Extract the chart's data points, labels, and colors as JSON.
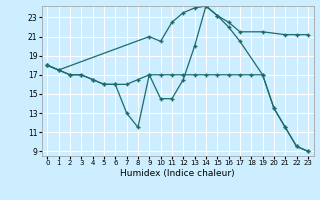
{
  "xlabel": "Humidex (Indice chaleur)",
  "background_color": "#cceeff",
  "grid_color": "#ffffff",
  "line_color": "#1a6b6b",
  "xlim": [
    -0.5,
    23.5
  ],
  "ylim": [
    8.5,
    24.2
  ],
  "yticks": [
    9,
    11,
    13,
    15,
    17,
    19,
    21,
    23
  ],
  "xticks": [
    0,
    1,
    2,
    3,
    4,
    5,
    6,
    7,
    8,
    9,
    10,
    11,
    12,
    13,
    14,
    15,
    16,
    17,
    18,
    19,
    20,
    21,
    22,
    23
  ],
  "series": [
    {
      "x": [
        0,
        1,
        9,
        10,
        11,
        12,
        13,
        14,
        15,
        16,
        17,
        19,
        21,
        22,
        23
      ],
      "y": [
        18.0,
        17.5,
        21.0,
        20.5,
        22.5,
        23.5,
        24.0,
        24.2,
        23.2,
        22.5,
        21.5,
        21.5,
        21.2,
        21.2,
        21.2
      ]
    },
    {
      "x": [
        0,
        1,
        2,
        3,
        4,
        5,
        6,
        7,
        8,
        9,
        10,
        11,
        12,
        13,
        14,
        15,
        16,
        17,
        18,
        19,
        20,
        21,
        22,
        23
      ],
      "y": [
        18.0,
        17.5,
        17.0,
        17.0,
        16.5,
        16.0,
        16.0,
        16.0,
        16.5,
        17.0,
        17.0,
        17.0,
        17.0,
        17.0,
        17.0,
        17.0,
        17.0,
        17.0,
        17.0,
        17.0,
        13.5,
        11.5,
        9.5,
        9.0
      ]
    },
    {
      "x": [
        0,
        2,
        3,
        4,
        5,
        6,
        7,
        8,
        9,
        10,
        11,
        12,
        13,
        14,
        15,
        16,
        17,
        19,
        20,
        21,
        22,
        23
      ],
      "y": [
        18.0,
        17.0,
        17.0,
        16.5,
        16.0,
        16.0,
        13.0,
        11.5,
        17.0,
        14.5,
        14.5,
        16.5,
        20.0,
        24.2,
        23.2,
        22.0,
        20.5,
        17.0,
        13.5,
        11.5,
        9.5,
        9.0
      ]
    }
  ]
}
